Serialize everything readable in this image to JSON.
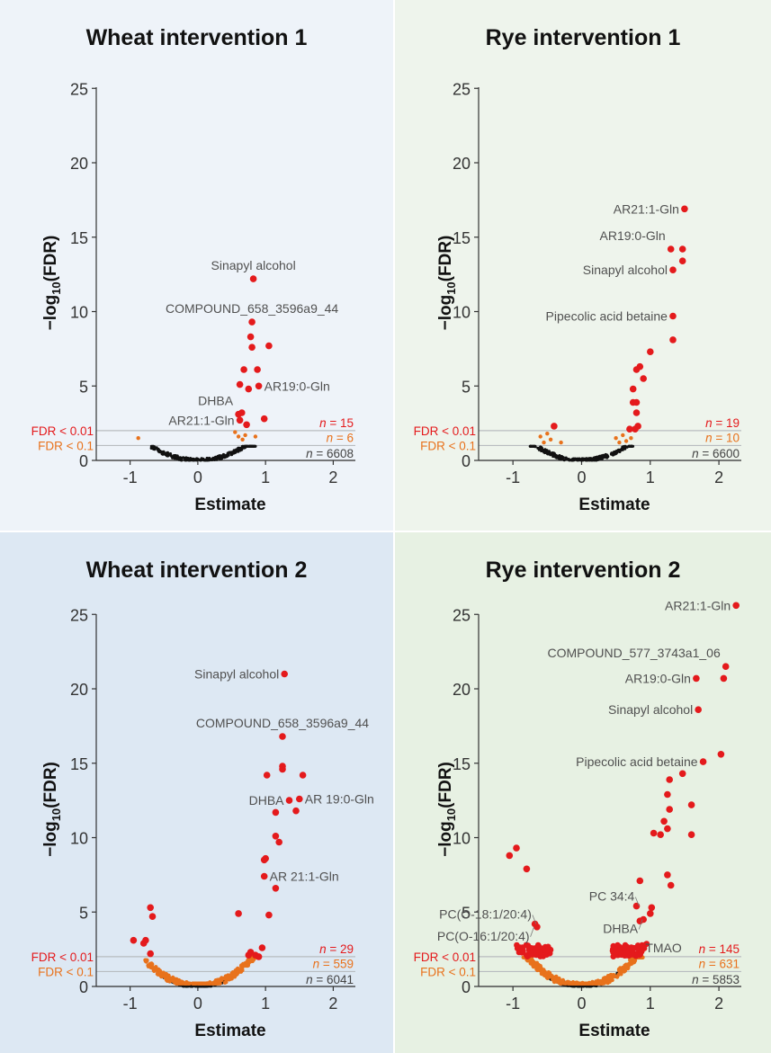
{
  "chart_data": [
    {
      "type": "scatter",
      "title": "Wheat intervention 1",
      "xlabel": "Estimate",
      "ylabel": "−log10(FDR)",
      "xlim": [
        -1.5,
        2.3
      ],
      "ylim": [
        0,
        26
      ],
      "xticks": [
        -1,
        0,
        1,
        2
      ],
      "yticks": [
        0,
        5,
        10,
        15,
        20,
        25
      ],
      "background": "#eef3f9",
      "thresholds": [
        {
          "label": "FDR < 0.01",
          "y": 2.0,
          "color": "#e41a1c"
        },
        {
          "label": "FDR < 0.1",
          "y": 1.0,
          "color": "#e8721c"
        }
      ],
      "counts": [
        {
          "text": "n = 15",
          "color": "#e41a1c"
        },
        {
          "text": "n = 6",
          "color": "#e8721c"
        },
        {
          "text": "n = 6608",
          "color": "#444444"
        }
      ],
      "series": [
        {
          "category": "FDR < 0.01",
          "color": "#e41a1c",
          "size": 3.8,
          "points": [
            [
              0.82,
              12.2
            ],
            [
              0.8,
              9.3
            ],
            [
              0.78,
              8.3
            ],
            [
              0.8,
              7.6
            ],
            [
              1.05,
              7.7
            ],
            [
              0.68,
              6.1
            ],
            [
              0.88,
              6.1
            ],
            [
              0.62,
              5.1
            ],
            [
              0.9,
              5.0
            ],
            [
              0.75,
              4.8
            ],
            [
              0.6,
              3.1
            ],
            [
              0.65,
              3.2
            ],
            [
              0.62,
              2.7
            ],
            [
              0.72,
              2.4
            ],
            [
              0.98,
              2.8
            ]
          ]
        },
        {
          "category": "FDR < 0.1",
          "color": "#e8721c",
          "size": 2.2,
          "points": [
            [
              -0.88,
              1.5
            ],
            [
              0.55,
              1.9
            ],
            [
              0.6,
              1.6
            ],
            [
              0.66,
              1.4
            ],
            [
              0.7,
              1.7
            ],
            [
              0.85,
              1.6
            ]
          ]
        },
        {
          "category": "ns",
          "color": "#111111",
          "size": 1.6,
          "cloud": true,
          "xrange": [
            -0.7,
            0.85
          ],
          "k": 2.0,
          "n": 250
        }
      ],
      "annotations": [
        {
          "text": "Sinapyl alcohol",
          "x": 0.82,
          "y": 12.2,
          "side": "above"
        },
        {
          "text": "COMPOUND_658_3596a9_44",
          "x": 0.8,
          "y": 9.3,
          "side": "above"
        },
        {
          "text": "AR19:0-Gln",
          "x": 0.9,
          "y": 5.0,
          "side": "right"
        },
        {
          "text": "DHBA",
          "x": 0.6,
          "y": 3.1,
          "side": "above-left"
        },
        {
          "text": "AR21:1-Gln",
          "x": 0.62,
          "y": 2.7,
          "side": "left"
        }
      ]
    },
    {
      "type": "scatter",
      "title": "Rye intervention 1",
      "xlabel": "Estimate",
      "ylabel": "−log10(FDR)",
      "xlim": [
        -1.5,
        2.3
      ],
      "ylim": [
        0,
        26
      ],
      "xticks": [
        -1,
        0,
        1,
        2
      ],
      "yticks": [
        0,
        5,
        10,
        15,
        20,
        25
      ],
      "background": "#eef4ec",
      "thresholds": [
        {
          "label": "FDR < 0.01",
          "y": 2.0,
          "color": "#e41a1c"
        },
        {
          "label": "FDR < 0.1",
          "y": 1.0,
          "color": "#e8721c"
        }
      ],
      "counts": [
        {
          "text": "n = 19",
          "color": "#e41a1c"
        },
        {
          "text": "n = 10",
          "color": "#e8721c"
        },
        {
          "text": "n = 6600",
          "color": "#444444"
        }
      ],
      "series": [
        {
          "category": "FDR < 0.01",
          "color": "#e41a1c",
          "size": 3.8,
          "points": [
            [
              1.5,
              16.9
            ],
            [
              1.3,
              14.2
            ],
            [
              1.47,
              14.2
            ],
            [
              1.47,
              13.4
            ],
            [
              1.33,
              12.8
            ],
            [
              1.33,
              9.7
            ],
            [
              1.33,
              8.1
            ],
            [
              1.0,
              7.3
            ],
            [
              0.85,
              6.3
            ],
            [
              0.8,
              6.1
            ],
            [
              0.9,
              5.5
            ],
            [
              0.75,
              4.8
            ],
            [
              0.75,
              3.9
            ],
            [
              0.8,
              3.9
            ],
            [
              0.8,
              3.2
            ],
            [
              0.78,
              2.1
            ],
            [
              0.82,
              2.3
            ],
            [
              -0.4,
              2.3
            ],
            [
              0.7,
              2.1
            ]
          ]
        },
        {
          "category": "FDR < 0.1",
          "color": "#e8721c",
          "size": 2.2,
          "points": [
            [
              -0.6,
              1.6
            ],
            [
              -0.5,
              1.8
            ],
            [
              -0.45,
              1.4
            ],
            [
              0.5,
              1.5
            ],
            [
              0.6,
              1.7
            ],
            [
              0.65,
              1.3
            ],
            [
              0.72,
              1.5
            ],
            [
              -0.3,
              1.2
            ],
            [
              0.55,
              1.2
            ],
            [
              -0.55,
              1.2
            ]
          ]
        },
        {
          "category": "ns",
          "color": "#111111",
          "size": 1.6,
          "cloud": true,
          "xrange": [
            -0.75,
            0.75
          ],
          "k": 2.2,
          "n": 250
        }
      ],
      "annotations": [
        {
          "text": "AR21:1-Gln",
          "x": 1.5,
          "y": 16.9,
          "side": "left"
        },
        {
          "text": "AR19:0-Gln",
          "x": 1.3,
          "y": 14.2,
          "side": "above-left"
        },
        {
          "text": "Sinapyl alcohol",
          "x": 1.33,
          "y": 12.8,
          "side": "left"
        },
        {
          "text": "Pipecolic acid betaine",
          "x": 1.33,
          "y": 9.7,
          "side": "left"
        }
      ]
    },
    {
      "type": "scatter",
      "title": "Wheat intervention 2",
      "xlabel": "Estimate",
      "ylabel": "−log10(FDR)",
      "xlim": [
        -1.5,
        2.3
      ],
      "ylim": [
        0,
        26
      ],
      "xticks": [
        -1,
        0,
        1,
        2
      ],
      "yticks": [
        0,
        5,
        10,
        15,
        20,
        25
      ],
      "background": "#dde8f3",
      "thresholds": [
        {
          "label": "FDR < 0.01",
          "y": 2.0,
          "color": "#e41a1c"
        },
        {
          "label": "FDR < 0.1",
          "y": 1.0,
          "color": "#e8721c"
        }
      ],
      "counts": [
        {
          "text": "n = 29",
          "color": "#e41a1c"
        },
        {
          "text": "n = 559",
          "color": "#e8721c"
        },
        {
          "text": "n = 6041",
          "color": "#444444"
        }
      ],
      "series": [
        {
          "category": "FDR < 0.01",
          "color": "#e41a1c",
          "size": 3.8,
          "points": [
            [
              1.28,
              21.0
            ],
            [
              1.25,
              16.8
            ],
            [
              1.25,
              14.8
            ],
            [
              1.25,
              14.6
            ],
            [
              1.02,
              14.2
            ],
            [
              1.55,
              14.2
            ],
            [
              1.35,
              12.5
            ],
            [
              1.5,
              12.6
            ],
            [
              1.15,
              11.7
            ],
            [
              1.45,
              11.8
            ],
            [
              1.15,
              10.1
            ],
            [
              1.2,
              9.7
            ],
            [
              1.0,
              8.6
            ],
            [
              0.98,
              8.5
            ],
            [
              0.98,
              7.4
            ],
            [
              1.15,
              6.6
            ],
            [
              0.6,
              4.9
            ],
            [
              1.05,
              4.8
            ],
            [
              -0.7,
              5.3
            ],
            [
              -0.67,
              4.7
            ],
            [
              -0.95,
              3.1
            ],
            [
              -0.8,
              2.9
            ],
            [
              -0.77,
              3.1
            ],
            [
              -0.7,
              2.2
            ],
            [
              0.95,
              2.6
            ],
            [
              0.9,
              2.0
            ],
            [
              0.85,
              2.1
            ],
            [
              0.78,
              2.3
            ],
            [
              0.75,
              2.1
            ]
          ]
        },
        {
          "category": "FDR < 0.1",
          "color": "#e8721c",
          "size": 2.2,
          "cloud": true,
          "xrange": [
            -0.78,
            0.9
          ],
          "k": 2.9,
          "jitter": 0.45,
          "n": 300
        },
        {
          "category": "ns",
          "color": "#111111",
          "size": 1.6,
          "cloud": true,
          "xrange": [
            -0.55,
            0.55
          ],
          "k": 2.8,
          "n": 250
        }
      ],
      "annotations": [
        {
          "text": "Sinapyl alcohol",
          "x": 1.28,
          "y": 21.0,
          "side": "left"
        },
        {
          "text": "COMPOUND_658_3596a9_44",
          "x": 1.25,
          "y": 16.8,
          "side": "above"
        },
        {
          "text": "DHBA",
          "x": 1.35,
          "y": 12.5,
          "side": "left"
        },
        {
          "text": "AR 19:0-Gln",
          "x": 1.5,
          "y": 12.6,
          "side": "right"
        },
        {
          "text": "AR 21:1-Gln",
          "x": 0.98,
          "y": 7.4,
          "side": "right"
        }
      ]
    },
    {
      "type": "scatter",
      "title": "Rye intervention 2",
      "xlabel": "Estimate",
      "ylabel": "−log10(FDR)",
      "xlim": [
        -1.5,
        2.3
      ],
      "ylim": [
        0,
        26
      ],
      "xticks": [
        -1,
        0,
        1,
        2
      ],
      "yticks": [
        0,
        5,
        10,
        15,
        20,
        25
      ],
      "background": "#e7f1e3",
      "thresholds": [
        {
          "label": "FDR < 0.01",
          "y": 2.0,
          "color": "#e41a1c"
        },
        {
          "label": "FDR < 0.1",
          "y": 1.0,
          "color": "#e8721c"
        }
      ],
      "counts": [
        {
          "text": "n = 145",
          "color": "#e41a1c"
        },
        {
          "text": "n = 631",
          "color": "#e8721c"
        },
        {
          "text": "n = 5853",
          "color": "#444444"
        }
      ],
      "series": [
        {
          "category": "FDR < 0.01",
          "color": "#e41a1c",
          "size": 3.8,
          "points": [
            [
              2.25,
              25.6
            ],
            [
              2.1,
              21.5
            ],
            [
              2.07,
              20.7
            ],
            [
              1.67,
              20.7
            ],
            [
              1.7,
              18.6
            ],
            [
              2.03,
              15.6
            ],
            [
              1.77,
              15.1
            ],
            [
              1.47,
              14.3
            ],
            [
              1.28,
              13.9
            ],
            [
              1.25,
              12.9
            ],
            [
              1.6,
              12.2
            ],
            [
              1.28,
              11.9
            ],
            [
              1.2,
              11.1
            ],
            [
              1.25,
              10.6
            ],
            [
              1.05,
              10.3
            ],
            [
              1.15,
              10.2
            ],
            [
              1.6,
              10.2
            ],
            [
              -1.05,
              8.8
            ],
            [
              -0.95,
              9.3
            ],
            [
              -0.8,
              7.9
            ],
            [
              0.85,
              7.1
            ],
            [
              1.25,
              7.5
            ],
            [
              1.3,
              6.8
            ],
            [
              0.8,
              5.4
            ],
            [
              -0.65,
              4.0
            ],
            [
              -0.68,
              4.2
            ],
            [
              0.85,
              4.4
            ],
            [
              1.02,
              5.3
            ],
            [
              1.0,
              4.9
            ],
            [
              0.9,
              4.5
            ]
          ]
        },
        {
          "category": "FDR < 0.01",
          "color": "#e41a1c",
          "size": 3.3,
          "cloud": true,
          "xrange": [
            -0.95,
            0.95
          ],
          "k": 3.0,
          "jitter": 0.55,
          "minAbs": 0.45,
          "ymin": 2.0,
          "n": 120
        },
        {
          "category": "FDR < 0.1",
          "color": "#e8721c",
          "size": 2.2,
          "cloud": true,
          "xrange": [
            -0.85,
            0.9
          ],
          "k": 3.2,
          "jitter": 0.5,
          "n": 320
        },
        {
          "category": "ns",
          "color": "#111111",
          "size": 1.6,
          "cloud": true,
          "xrange": [
            -0.55,
            0.55
          ],
          "k": 3.0,
          "n": 260
        }
      ],
      "annotations": [
        {
          "text": "AR21:1-Gln",
          "x": 2.25,
          "y": 25.6,
          "side": "left"
        },
        {
          "text": "COMPOUND_577_3743a1_06",
          "x": 2.1,
          "y": 21.5,
          "side": "above-left"
        },
        {
          "text": "AR19:0-Gln",
          "x": 1.67,
          "y": 20.7,
          "side": "left"
        },
        {
          "text": "Sinapyl alcohol",
          "x": 1.7,
          "y": 18.6,
          "side": "left"
        },
        {
          "text": "Pipecolic acid betaine",
          "x": 1.77,
          "y": 15.1,
          "side": "left"
        },
        {
          "text": "PC 34:4",
          "x": 0.85,
          "y": 5.4,
          "side": "left-up"
        },
        {
          "text": "PC(O-18:1/20:4)",
          "x": -0.65,
          "y": 4.2,
          "side": "left-up"
        },
        {
          "text": "PC(O-16:1/20:4)",
          "x": -0.68,
          "y": 4.0,
          "side": "left-down"
        },
        {
          "text": "DHBA",
          "x": 0.9,
          "y": 4.5,
          "side": "left-down"
        },
        {
          "text": "TMAO",
          "x": 0.85,
          "y": 2.6,
          "side": "right"
        }
      ]
    }
  ]
}
